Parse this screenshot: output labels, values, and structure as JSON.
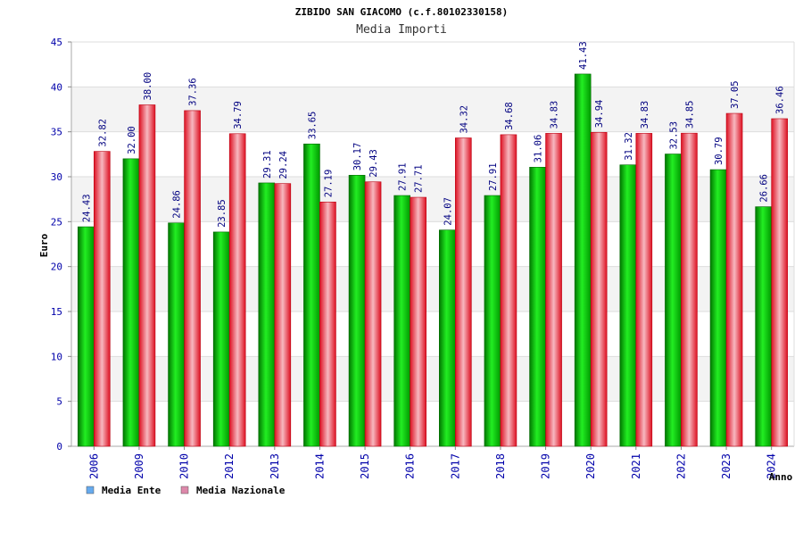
{
  "chart_data": {
    "type": "bar",
    "title": "ZIBIDO SAN GIACOMO (c.f.80102330158)",
    "subtitle": "Media Importi",
    "ylabel": "Euro",
    "xlabel": "Anno",
    "ylim": [
      0,
      45
    ],
    "yticks": [
      0,
      5,
      10,
      15,
      20,
      25,
      30,
      35,
      40,
      45
    ],
    "grid": true,
    "legend_position": "bottom-left",
    "categories": [
      "2006",
      "2009",
      "2010",
      "2012",
      "2013",
      "2014",
      "2015",
      "2016",
      "2017",
      "2018",
      "2019",
      "2020",
      "2021",
      "2022",
      "2023",
      "2024"
    ],
    "series": [
      {
        "name": "Media Ente",
        "color": "#00cc00",
        "legend_color": "#66aaee",
        "values": [
          24.43,
          32.0,
          24.86,
          23.85,
          29.31,
          33.65,
          30.17,
          27.91,
          24.07,
          27.91,
          31.06,
          41.43,
          31.32,
          32.53,
          30.79,
          26.66
        ],
        "labels": [
          "24.43",
          "32.00",
          "24.86",
          "23.85",
          "29.31",
          "33.65",
          "30.17",
          "27.91",
          "24.07",
          "27.91",
          "31.06",
          "41.43",
          "31.32",
          "32.53",
          "30.79",
          "26.66"
        ]
      },
      {
        "name": "Media Nazionale",
        "color": "#ee2233",
        "legend_color": "#dd88aa",
        "values": [
          32.82,
          38.0,
          37.36,
          34.79,
          29.24,
          27.19,
          29.43,
          27.71,
          34.32,
          34.68,
          34.83,
          34.94,
          34.83,
          34.85,
          37.05,
          36.46
        ],
        "labels": [
          "32.82",
          "38.00",
          "37.36",
          "34.79",
          "29.24",
          "27.19",
          "29.43",
          "27.71",
          "34.32",
          "34.68",
          "34.83",
          "34.94",
          "34.83",
          "34.85",
          "37.05",
          "36.46"
        ]
      }
    ]
  }
}
